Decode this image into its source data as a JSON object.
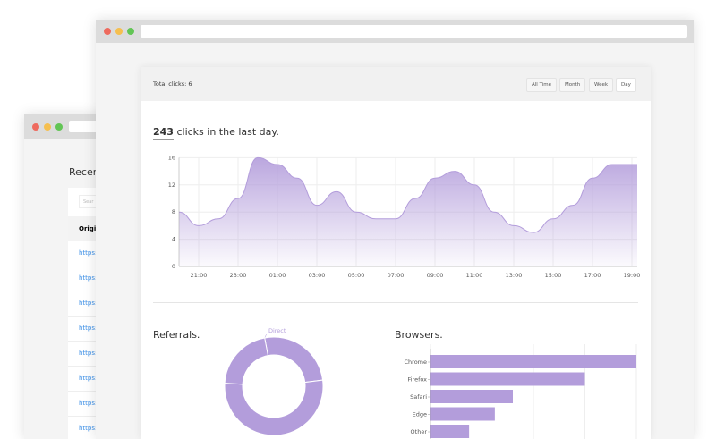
{
  "back_window": {
    "heading": "Recen",
    "search_placeholder": "Sear",
    "column_header": "Origin",
    "rows": [
      "https:",
      "https:",
      "https:",
      "https:",
      "https:",
      "https:",
      "https:",
      "https:"
    ]
  },
  "dashboard": {
    "total_clicks_label": "Total clicks: 6",
    "ranges": [
      "All Time",
      "Month",
      "Week",
      "Day"
    ],
    "active_range": "Day",
    "clicks_count": "243",
    "clicks_suffix": " clicks in the last day.",
    "referrals_title": "Referrals.",
    "browsers_title": "Browsers."
  },
  "colors": {
    "accent": "#b39ddb",
    "close": "#ee6a5e",
    "min": "#f5bf4f",
    "max": "#62c555"
  },
  "chart_data": [
    {
      "type": "area",
      "x": [
        "20:00",
        "21:00",
        "22:00",
        "23:00",
        "00:00",
        "01:00",
        "02:00",
        "03:00",
        "04:00",
        "05:00",
        "06:00",
        "07:00",
        "08:00",
        "09:00",
        "10:00",
        "11:00",
        "12:00",
        "13:00",
        "14:00",
        "15:00",
        "16:00",
        "17:00",
        "18:00",
        "19:00"
      ],
      "values": [
        8,
        6,
        7,
        10,
        16,
        15,
        13,
        9,
        11,
        8,
        7,
        7,
        10,
        13,
        14,
        12,
        8,
        6,
        5,
        7,
        9,
        13,
        15,
        15
      ],
      "x_ticks": [
        "21:00",
        "23:00",
        "01:00",
        "03:00",
        "05:00",
        "07:00",
        "09:00",
        "11:00",
        "13:00",
        "15:00",
        "17:00",
        "19:00"
      ],
      "y_ticks": [
        "0",
        "4",
        "8",
        "12",
        "16"
      ],
      "ylim": [
        0,
        16
      ],
      "grid": true
    },
    {
      "type": "pie",
      "slices": [
        {
          "name": "Direct",
          "value": 0.26
        },
        {
          "name": "",
          "value": 0.53
        },
        {
          "name": "",
          "value": 0.21
        }
      ]
    },
    {
      "type": "bar",
      "orientation": "horizontal",
      "categories": [
        "Chrome",
        "Firefox",
        "Safari",
        "Edge",
        "Other"
      ],
      "values": [
        4,
        3,
        1.6,
        1.25,
        0.75
      ],
      "grid": true
    }
  ]
}
